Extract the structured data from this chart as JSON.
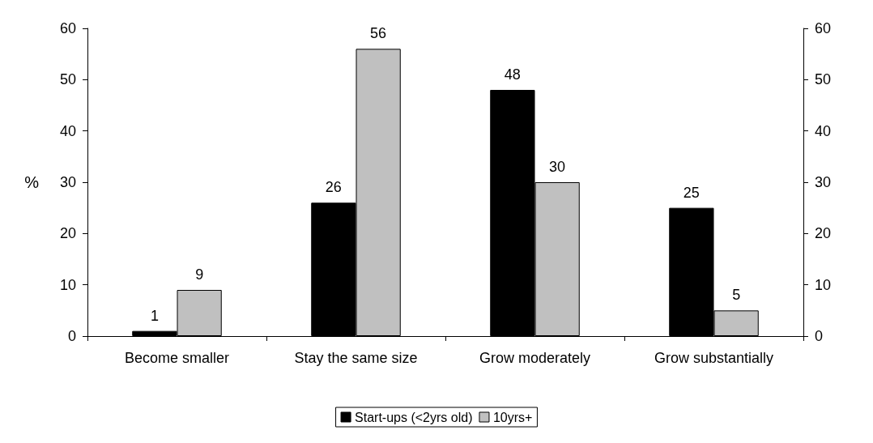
{
  "chart_data": {
    "type": "bar",
    "ylabel": "%",
    "categories": [
      "Become smaller",
      "Stay the same size",
      "Grow moderately",
      "Grow substantially"
    ],
    "series": [
      {
        "name": "Start-ups (<2yrs old)",
        "color": "#000000",
        "values": [
          1,
          26,
          48,
          25
        ]
      },
      {
        "name": "10yrs+",
        "color": "#c0c0c0",
        "values": [
          9,
          56,
          30,
          5
        ]
      }
    ],
    "ylim": [
      0,
      60
    ],
    "yticks": [
      0,
      10,
      20,
      30,
      40,
      50,
      60
    ],
    "y2lim": [
      0,
      60
    ],
    "y2ticks": [
      0,
      10,
      20,
      30,
      40,
      50,
      60
    ],
    "data_labels": true,
    "grid": false,
    "legend": "bottom"
  }
}
